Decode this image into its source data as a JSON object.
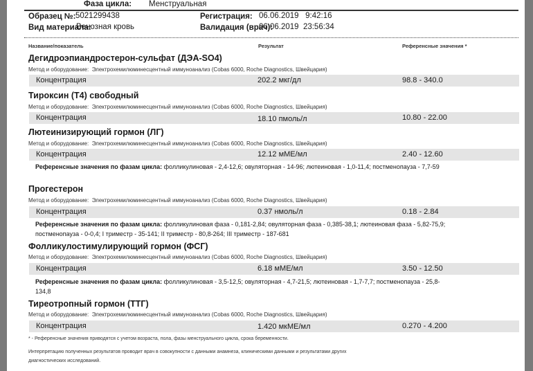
{
  "header": {
    "cycle_phase_label": "Фаза цикла:",
    "cycle_phase_value": "Менструальная",
    "sample_label": "Образец №:",
    "sample_value": "5021299438",
    "material_label": "Вид материала:",
    "material_value": "Венозная кровь",
    "registration_label": "Регистрация:",
    "registration_value": "06.06.2019   9:42:16",
    "validation_label": "Валидация (врач):",
    "validation_value": "06.06.2019  23:56:34"
  },
  "columns": {
    "name": "Название/показатель",
    "result": "Результат",
    "reference": "Референсные значения *"
  },
  "method_label": "Метод и оборудование:",
  "tests": [
    {
      "title": "Дегидроэпиандростерон-сульфат (ДЭА-SO4)",
      "method": "Электрохемилюминесцентный иммуноанализ (Cobas 6000, Roche Diagnostics, Швейцария)",
      "param": "Концентрация",
      "result": "202.2 мкг/дл",
      "reference": "98.8 - 340.0"
    },
    {
      "title": "Тироксин (Т4) свободный",
      "method": "Электрохемилюминесцентный иммуноанализ (Cobas 6000, Roche Diagnostics, Швейцария)",
      "param": "Концентрация",
      "result": "18.10 пмоль/л",
      "reference": "10.80 - 22.00"
    },
    {
      "title": "Лютеинизирующий гормон (ЛГ)",
      "method": "Электрохемилюминесцентный иммуноанализ (Cobas 6000, Roche Diagnostics, Швейцария)",
      "param": "Концентрация",
      "result": "12.12 мМЕ/мл",
      "reference": "2.40 - 12.60",
      "phase_label": "Референсные значения по фазам цикла:",
      "phase_text": "фолликулиновая - 2,4-12,6; овуляторная - 14-96; лютеиновая - 1,0-11,4; постменопауза - 7,7-59"
    },
    {
      "title": "Прогестерон",
      "method": "Электрохемилюминесцентный иммуноанализ (Cobas 6000, Roche Diagnostics, Швейцария)",
      "param": "Концентрация",
      "result": "0.37 нмоль/л",
      "reference": "0.18 - 2.84",
      "phase_label": "Референсные значения по фазам цикла:",
      "phase_text": "фолликулиновая фаза - 0,181-2,84; овуляторная фаза - 0,385-38,1; лютеиновая фаза - 5,82-75,9; постменопауза - 0-0,4; I триместр - 35-141; II триместр - 80,8-264; III триместр - 187-681"
    },
    {
      "title": "Фолликулостимулирующий гормон (ФСГ)",
      "method": "Электрохемилюминесцентный иммуноанализ (Cobas 6000, Roche Diagnostics, Швейцария)",
      "param": "Концентрация",
      "result": "6.18 мМЕ/мл",
      "reference": "3.50 - 12.50",
      "phase_label": "Референсные значения по фазам цикла:",
      "phase_text": "фолликулиновая - 3,5-12,5; овуляторная - 4,7-21,5; лютеиновая - 1,7-7,7; постменопауза - 25,8-134,8"
    },
    {
      "title": "Тиреотропный гормон (ТТГ)",
      "method": "Электрохемилюминесцентный иммуноанализ (Cobas 6000, Roche Diagnostics, Швейцария)",
      "param": "Концентрация",
      "result": "1.420 мкМЕ/мл",
      "reference": "0.270 - 4.200"
    }
  ],
  "footnote": "* - Референсные значения приводятся с учетом возраста, пола, фазы менструального цикла, срока беременности.",
  "interpretation": "Интерпретацию полученных результатов проводит врач в совокупности с данными анамнеза, клиническими данными и результатами других диагностических исследований."
}
